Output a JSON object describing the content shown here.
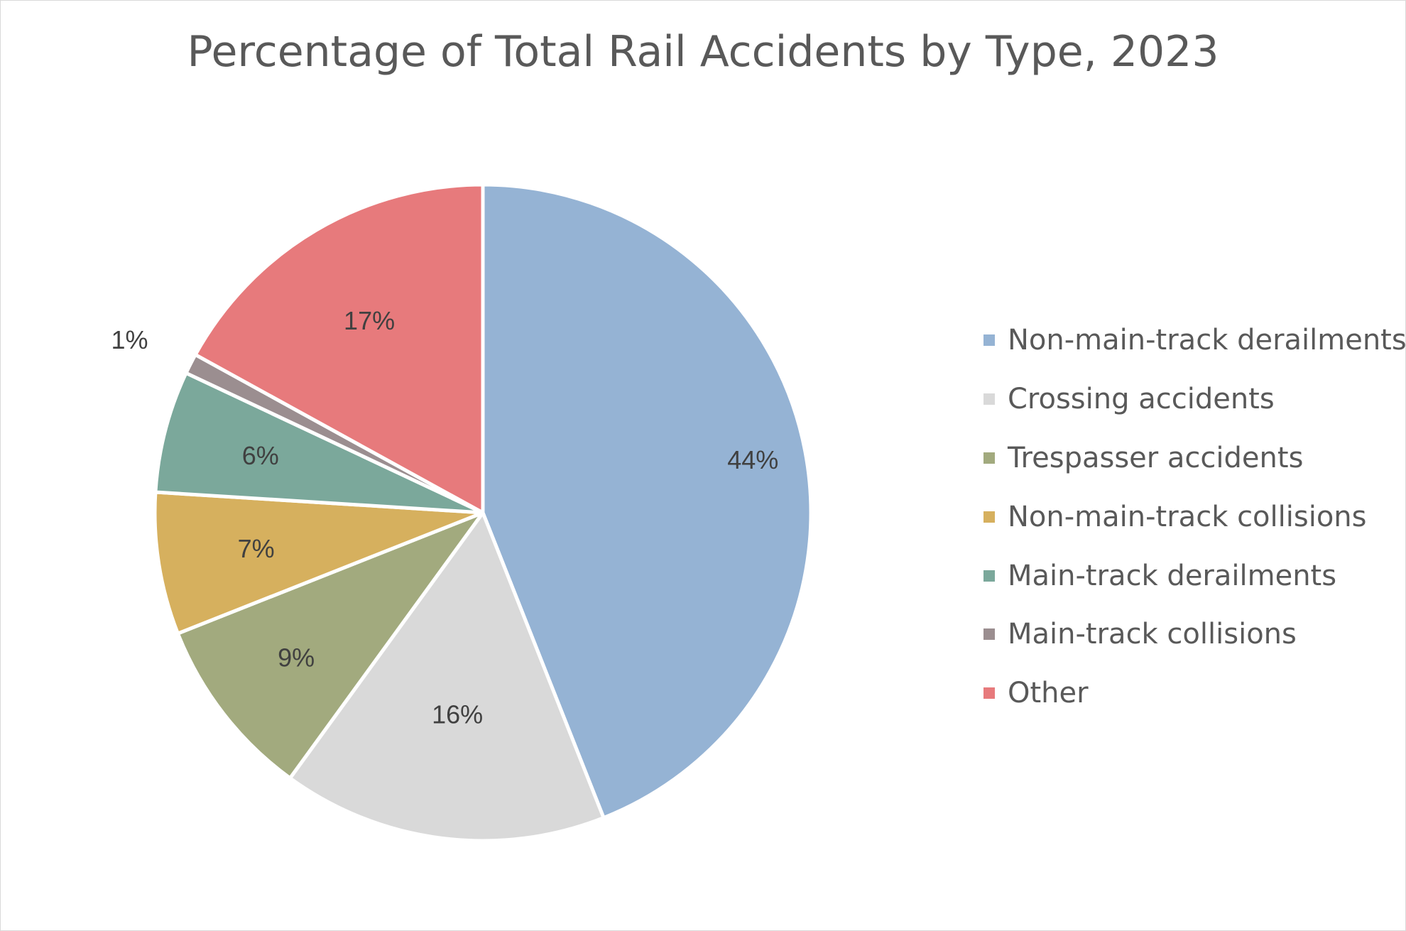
{
  "chart_data": {
    "type": "pie",
    "title": "Percentage of Total Rail Accidents by Type, 2023",
    "legend_position": "right",
    "start_angle": "12 o'clock, clockwise",
    "slices": [
      {
        "name": "Non-main-track derailments",
        "value": 44,
        "label": "44%",
        "color": "#95B3D4"
      },
      {
        "name": "Crossing accidents",
        "value": 16,
        "label": "16%",
        "color": "#D9D9D9"
      },
      {
        "name": "Trespasser accidents",
        "value": 9,
        "label": "9%",
        "color": "#A2AA7E"
      },
      {
        "name": "Non-main-track collisions",
        "value": 7,
        "label": "7%",
        "color": "#D6B05E"
      },
      {
        "name": "Main-track derailments",
        "value": 6,
        "label": "6%",
        "color": "#7BA89B"
      },
      {
        "name": "Main-track collisions",
        "value": 1,
        "label": "1%",
        "color": "#9B8E90"
      },
      {
        "name": "Other",
        "value": 17,
        "label": "17%",
        "color": "#E77A7C"
      }
    ]
  }
}
